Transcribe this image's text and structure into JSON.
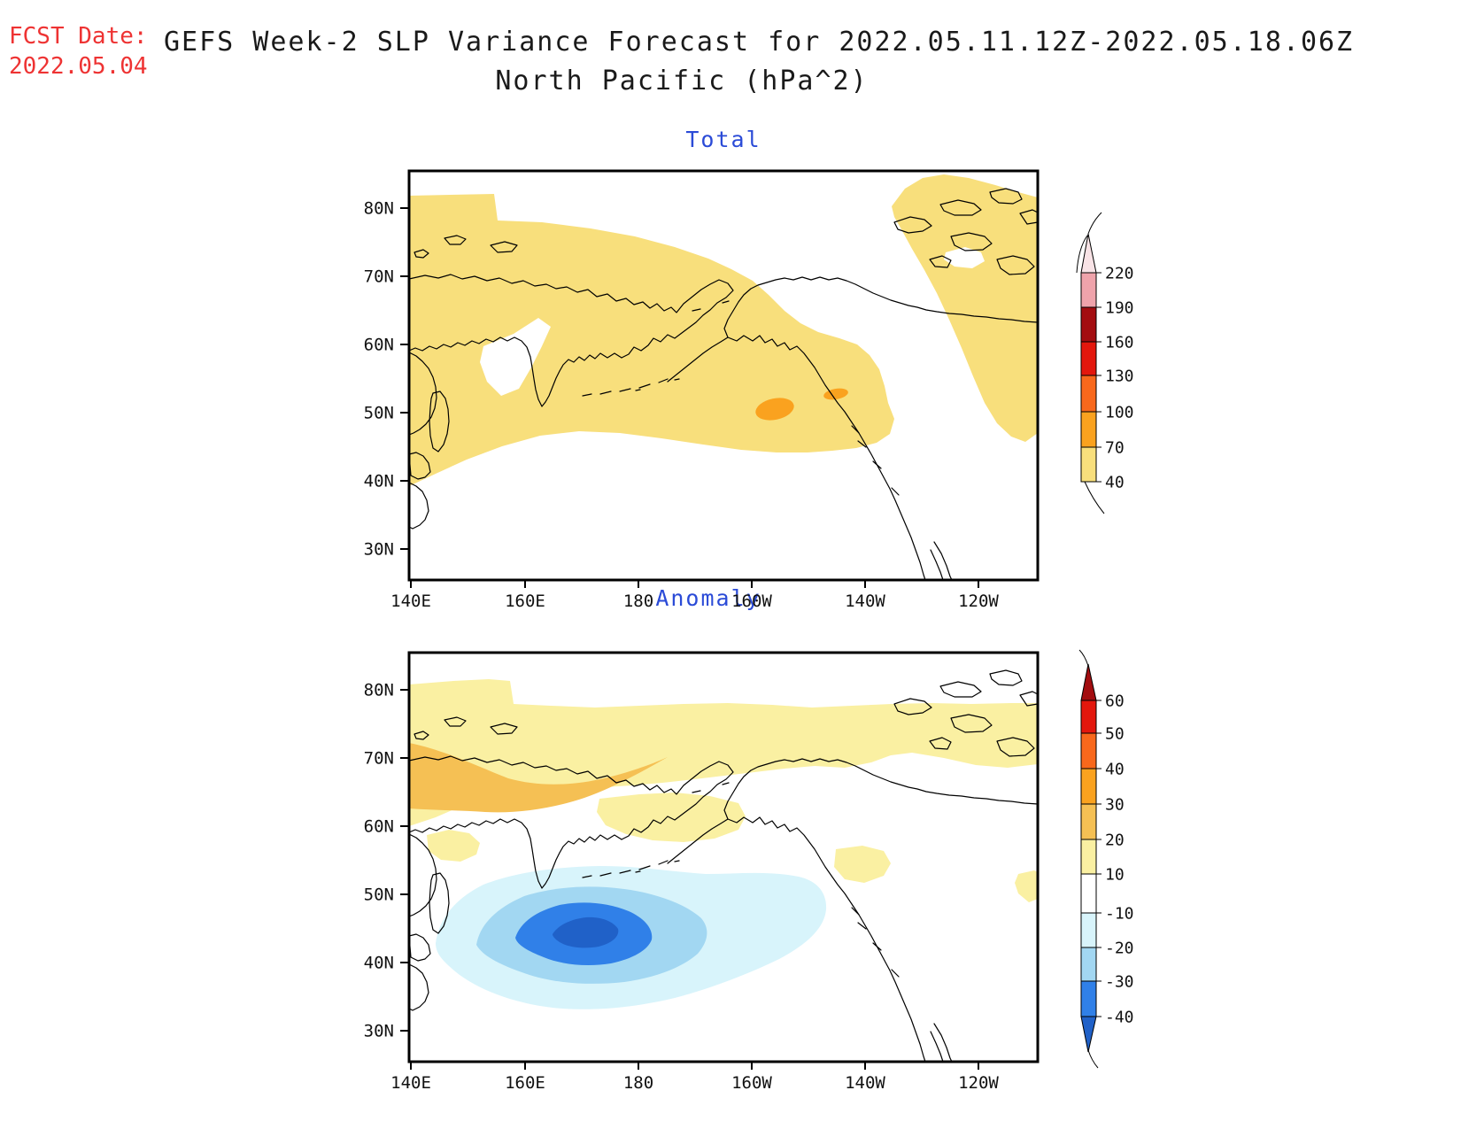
{
  "header": {
    "fcst_label": "FCST Date:",
    "fcst_date": "2022.05.04",
    "title_line1": "GEFS Week-2 SLP Variance Forecast for 2022.05.11.12Z-2022.05.18.06Z",
    "title_line2": "North Pacific (hPa^2)"
  },
  "panels": [
    {
      "id": "total",
      "title": "Total"
    },
    {
      "id": "anomaly",
      "title": "Anomaly"
    }
  ],
  "axes": {
    "x_ticks": [
      "140E",
      "160E",
      "180",
      "160W",
      "140W",
      "120W"
    ],
    "y_ticks": [
      "80N",
      "70N",
      "60N",
      "50N",
      "40N",
      "30N"
    ]
  },
  "palette": {
    "panel_title_blue": "#2B4BD7",
    "fcst_red": "#EE3333",
    "title_black": "#1A1A1A",
    "coastline": "#000000",
    "white": "#FFFFFF",
    "total_level_40_70": "#F8DF7C",
    "total_level_70_100": "#FAA21F",
    "anom_level_10_20": "#FAF0A2",
    "anom_level_20_30": "#F5C054",
    "anom_level_m10_m20": "#D8F4FB",
    "anom_level_m20_m30": "#A2D7F2",
    "anom_level_m30_m40": "#3080E8",
    "anom_level_below_m40": "#2061C8"
  },
  "colorbar_total": {
    "tick_labels": [
      "220",
      "190",
      "160",
      "130",
      "100",
      "70",
      "40"
    ],
    "segment_colors_top_to_bottom": [
      "#EFA3AB",
      "#A30D10",
      "#E3170D",
      "#F8681C",
      "#FAA21F",
      "#F8DF7C"
    ],
    "taper_color": "#F8E3E6"
  },
  "colorbar_anomaly": {
    "tick_labels": [
      "60",
      "50",
      "40",
      "30",
      "20",
      "10",
      "-10",
      "-20",
      "-30",
      "-40"
    ],
    "segment_colors_top_to_bottom": [
      "#E3170D",
      "#F8681C",
      "#FAA21F",
      "#F5C054",
      "#FAF0A2",
      "#FFFFFF",
      "#D8F4FB",
      "#A2D7F2",
      "#3080E8"
    ],
    "arrow_up_color": "#A30D10",
    "arrow_down_color": "#2061C8"
  },
  "chart_data": [
    {
      "type": "heatmap",
      "panel": "Total",
      "title": "Total",
      "units": "hPa^2",
      "x_axis": {
        "ticks": [
          "140E",
          "160E",
          "180",
          "160W",
          "140W",
          "120W"
        ],
        "range": "140E to about 110W"
      },
      "y_axis": {
        "ticks": [
          "80N",
          "70N",
          "60N",
          "50N",
          "40N",
          "30N"
        ],
        "range": "about 25N to 85N"
      },
      "contour_levels": [
        40,
        70,
        100,
        130,
        160,
        190,
        220
      ],
      "level_colors": [
        "#F8DF7C",
        "#FAA21F",
        "#F8681C",
        "#E3170D",
        "#A30D10",
        "#EFA3AB",
        "#F8E3E6"
      ],
      "legend_position": "right",
      "features": [
        {
          "range": "40-70",
          "description": "Broad region covering the Bering Sea, Sea of Okhotsk, northwest and central North Pacific (roughly 35N-75N west of 160W), the Siberian Arctic coastal band, the Gulf of Alaska, and northwest Canada / Canadian Arctic islands"
        },
        {
          "range": "70-100",
          "description": "Small maximum near 50N, 163W south of the Alaska Peninsula"
        },
        {
          "range": "70-100",
          "description": "Smaller maximum near 52N, 152W"
        }
      ]
    },
    {
      "type": "heatmap",
      "panel": "Anomaly",
      "title": "Anomaly",
      "units": "hPa^2",
      "x_axis": {
        "ticks": [
          "140E",
          "160E",
          "180",
          "160W",
          "140W",
          "120W"
        ],
        "range": "140E to about 110W"
      },
      "y_axis": {
        "ticks": [
          "80N",
          "70N",
          "60N",
          "50N",
          "40N",
          "30N"
        ],
        "range": "about 25N to 85N"
      },
      "contour_levels": [
        -40,
        -30,
        -20,
        -10,
        10,
        20,
        30,
        40,
        50,
        60
      ],
      "level_colors_positive": [
        "#FAF0A2",
        "#F5C054",
        "#FAA21F",
        "#F8681C",
        "#E3170D",
        "#A30D10"
      ],
      "level_colors_negative": [
        "#D8F4FB",
        "#A2D7F2",
        "#3080E8",
        "#2061C8"
      ],
      "legend_position": "right",
      "features": [
        {
          "range": "-40 to -50",
          "description": "Negative anomaly core near 43N, 172E"
        },
        {
          "range": "-30 to -40",
          "description": "Ring around the core, roughly 40N-47N, 165E-180"
        },
        {
          "range": "-20 to -30",
          "description": "Wider ring, roughly 37N-49N, 160E-172W"
        },
        {
          "range": "-10 to -20",
          "description": "Outermost negative region, roughly 34N-52N, 150E-160W"
        },
        {
          "range": "20 to 30",
          "description": "Positive band along the Siberian Arctic coast near 67N-72N from 140E to about 178E"
        },
        {
          "range": "10 to 20",
          "description": "Positive band near 75N-82N across the map, patch near 57N 150E, patch over Bering Strait / western Alaska, patch in the Gulf of Alaska near 55N 143W, and small patch near 45N 112W"
        }
      ]
    }
  ]
}
